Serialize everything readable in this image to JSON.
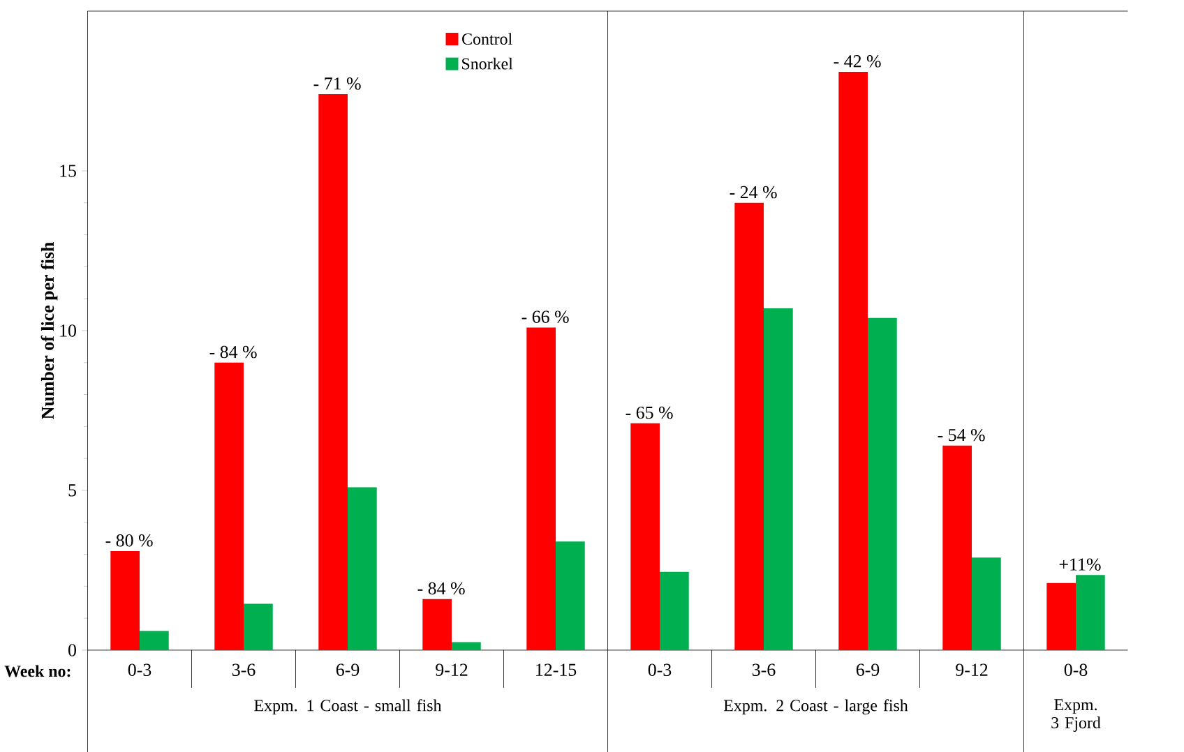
{
  "chart_data": {
    "type": "bar",
    "xlabel": "Week no:",
    "ylabel": "Number of  lice per fish",
    "categories": [
      "0-3",
      "3-6",
      "6-9",
      "9-12",
      "12-15",
      "0-3",
      "3-6",
      "6-9",
      "9-12",
      "0-8"
    ],
    "series": [
      {
        "name": "Control",
        "color": "#ff0000",
        "values": [
          3.1,
          9.0,
          17.4,
          1.6,
          10.1,
          7.1,
          14.0,
          18.1,
          6.4,
          2.1
        ]
      },
      {
        "name": "Snorkel",
        "color": "#00b050",
        "values": [
          0.6,
          1.45,
          5.1,
          0.25,
          3.4,
          2.45,
          10.7,
          10.4,
          2.9,
          2.35
        ]
      }
    ],
    "ylim": [
      0,
      20
    ],
    "yticks": [
      0,
      5,
      10,
      15
    ],
    "legend": "top",
    "annotations": [
      "Expm. 1 Coast - small fish",
      "Expm. 2 Coast - large fish",
      "Expm. 3 Fjord",
      "- 80 %",
      "- 84 %",
      "- 71 %",
      "- 84 %",
      "- 66 %",
      "- 65 %",
      "- 24 %",
      "- 42 %",
      "- 54 %",
      "+11%"
    ]
  }
}
